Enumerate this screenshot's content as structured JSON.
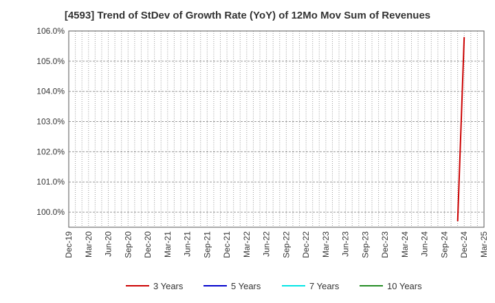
{
  "chart_data": {
    "type": "line",
    "title": "[4593]  Trend of StDev of Growth Rate (YoY) of 12Mo Mov Sum of Revenues",
    "xlabel": "",
    "ylabel": "",
    "ylim": [
      99.5,
      106.0
    ],
    "y_ticks": [
      "100.0%",
      "101.0%",
      "102.0%",
      "103.0%",
      "104.0%",
      "105.0%",
      "106.0%"
    ],
    "y_tick_values": [
      100,
      101,
      102,
      103,
      104,
      105,
      106
    ],
    "x_ticks": [
      "Dec-19",
      "Mar-20",
      "Jun-20",
      "Sep-20",
      "Dec-20",
      "Mar-21",
      "Jun-21",
      "Sep-21",
      "Dec-21",
      "Mar-22",
      "Jun-22",
      "Sep-22",
      "Dec-22",
      "Mar-23",
      "Jun-23",
      "Sep-23",
      "Dec-23",
      "Mar-24",
      "Jun-24",
      "Sep-24",
      "Dec-24",
      "Mar-25"
    ],
    "xlim": [
      "2019-12",
      "2025-03"
    ],
    "grid": true,
    "legend_position": "bottom",
    "series": [
      {
        "name": "3 Years",
        "color": "#cc0000",
        "points": [
          [
            "2024-11",
            99.7
          ],
          [
            "2024-12",
            105.8
          ]
        ]
      },
      {
        "name": "5 Years",
        "color": "#0000cc",
        "points": []
      },
      {
        "name": "7 Years",
        "color": "#00e5e5",
        "points": []
      },
      {
        "name": "10 Years",
        "color": "#228b22",
        "points": []
      }
    ]
  }
}
